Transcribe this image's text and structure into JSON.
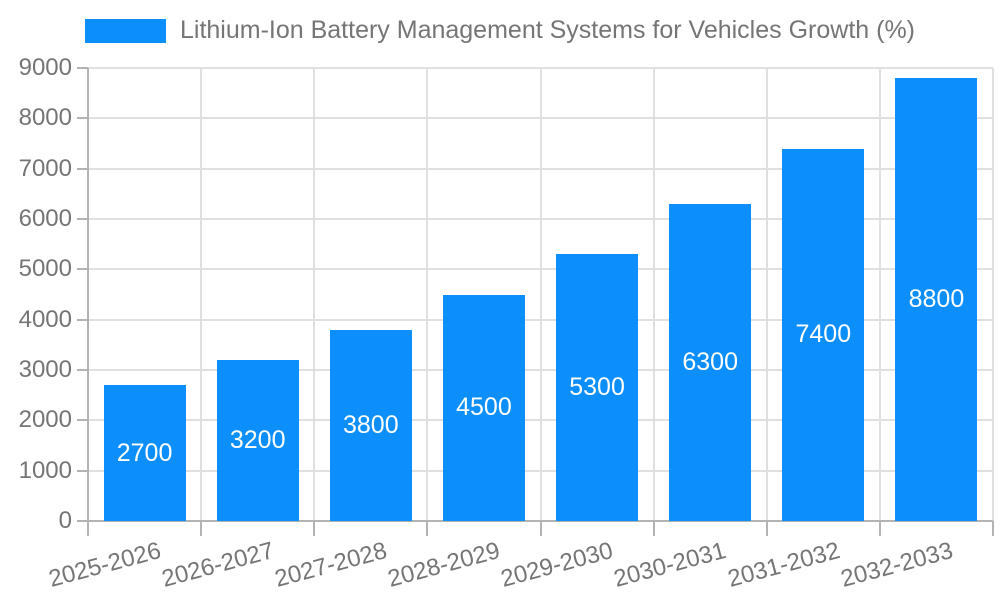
{
  "legend": {
    "label": "Lithium-Ion Battery Management Systems for Vehicles Growth (%)"
  },
  "colors": {
    "bar": "#0d8ffb",
    "axis_text": "#757575",
    "gridline": "#e0e0e0",
    "axis_line": "#b3b3b3",
    "value_label": "#ffffff"
  },
  "chart_data": {
    "type": "bar",
    "title": "Lithium-Ion Battery Management Systems for Vehicles Growth (%)",
    "categories": [
      "2025-2026",
      "2026-2027",
      "2027-2028",
      "2028-2029",
      "2029-2030",
      "2030-2031",
      "2031-2032",
      "2032-2033"
    ],
    "values": [
      2700,
      3200,
      3800,
      4500,
      5300,
      6300,
      7400,
      8800
    ],
    "xlabel": "",
    "ylabel": "",
    "ylim": [
      0,
      9000
    ],
    "ytick_step": 1000,
    "yticks": [
      0,
      1000,
      2000,
      3000,
      4000,
      5000,
      6000,
      7000,
      8000,
      9000
    ],
    "grid": true,
    "legend_position": "top",
    "bar_labels_inside": true
  }
}
